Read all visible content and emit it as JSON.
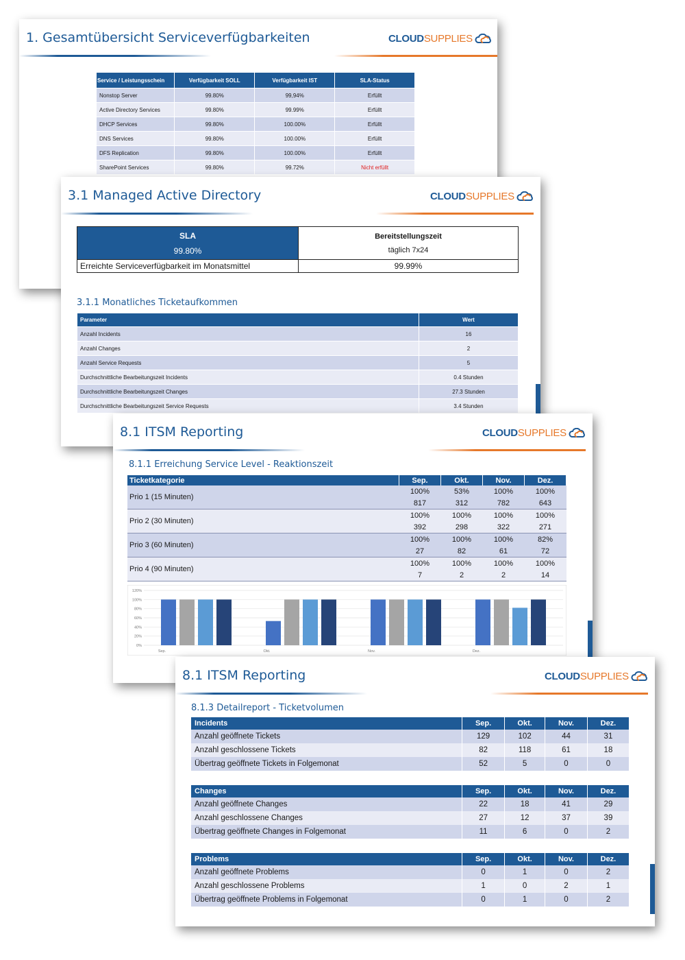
{
  "brand": {
    "cloud": "CLOUD",
    "supplies": "SUPPLIES"
  },
  "page1": {
    "title": "1. Gesamtübersicht Serviceverfügbarkeiten",
    "headers": [
      "Service / Leistungsschein",
      "Verfügbarkeit SOLL",
      "Verfügbarkeit IST",
      "SLA-Status"
    ],
    "rows": [
      [
        "Nonstop Server",
        "99.80%",
        "99,94%",
        "Erfüllt"
      ],
      [
        "Active Directory Services",
        "99.80%",
        "99.99%",
        "Erfüllt"
      ],
      [
        "DHCP Services",
        "99.80%",
        "100.00%",
        "Erfüllt"
      ],
      [
        "DNS Services",
        "99.80%",
        "100.00%",
        "Erfüllt"
      ],
      [
        "DFS Replication",
        "99.80%",
        "100.00%",
        "Erfüllt"
      ],
      [
        "SharePoint Services",
        "99.80%",
        "99.72%",
        "Nicht erfüllt"
      ]
    ],
    "fail_color": "#e02020"
  },
  "page2": {
    "title": "3.1 Managed Active Directory",
    "sla_label": "SLA",
    "sla_value": "99.80%",
    "bereit_label": "Bereitstellungszeit",
    "bereit_value": "täglich 7x24",
    "avail_label": "Erreichte Serviceverfügbarkeit im Monatsmittel",
    "avail_value": "99.99%",
    "section": "3.1.1 Monatliches Ticketaufkommen",
    "headers": [
      "Parameter",
      "Wert"
    ],
    "rows": [
      [
        "Anzahl Incidents",
        "16"
      ],
      [
        "Anzahl Changes",
        "2"
      ],
      [
        "Anzahl Service Requests",
        "5"
      ],
      [
        "Durchschnittliche Bearbeitungszeit Incidents",
        "0.4 Stunden"
      ],
      [
        "Durchschnittliche Bearbeitungszeit Changes",
        "27.3 Stunden"
      ],
      [
        "Durchschnittliche Bearbeitungszeit Service Requests",
        "3.4 Stunden"
      ]
    ]
  },
  "page3": {
    "title": "8.1 ITSM Reporting",
    "section": "8.1.1 Erreichung Service Level - Reaktionszeit",
    "headers": [
      "Ticketkategorie",
      "Sep.",
      "Okt.",
      "Nov.",
      "Dez."
    ],
    "rows": [
      {
        "label": "Prio 1 (15 Minuten)",
        "pct": [
          "100%",
          "53%",
          "100%",
          "100%"
        ],
        "cnt": [
          "817",
          "312",
          "782",
          "643"
        ]
      },
      {
        "label": "Prio 2 (30 Minuten)",
        "pct": [
          "100%",
          "100%",
          "100%",
          "100%"
        ],
        "cnt": [
          "392",
          "298",
          "322",
          "271"
        ]
      },
      {
        "label": "Prio 3 (60 Minuten)",
        "pct": [
          "100%",
          "100%",
          "100%",
          "82%"
        ],
        "cnt": [
          "27",
          "82",
          "61",
          "72"
        ]
      },
      {
        "label": "Prio 4 (90 Minuten)",
        "pct": [
          "100%",
          "100%",
          "100%",
          "100%"
        ],
        "cnt": [
          "7",
          "2",
          "2",
          "14"
        ]
      }
    ]
  },
  "chart_data": {
    "type": "bar",
    "categories": [
      "Sep.",
      "Okt.",
      "Nov.",
      "Dez."
    ],
    "series": [
      {
        "values": [
          100,
          53,
          100,
          100
        ],
        "color": "#4472c4"
      },
      {
        "values": [
          100,
          100,
          100,
          100
        ],
        "color": "#a5a5a5"
      },
      {
        "values": [
          100,
          100,
          100,
          82
        ],
        "color": "#5b9bd5"
      },
      {
        "values": [
          100,
          100,
          100,
          100
        ],
        "color": "#264478"
      }
    ],
    "yticks": [
      "0%",
      "20%",
      "40%",
      "60%",
      "80%",
      "100%",
      "120%"
    ],
    "ylim": [
      0,
      120
    ],
    "grid": true
  },
  "page4": {
    "title": "8.1 ITSM Reporting",
    "section": "8.1.3 Detailreport - Ticketvolumen",
    "months": [
      "Sep.",
      "Okt.",
      "Nov.",
      "Dez."
    ],
    "groups": [
      {
        "name": "Incidents",
        "rows": [
          [
            "Anzahl geöffnete Tickets",
            "129",
            "102",
            "44",
            "31"
          ],
          [
            "Anzahl geschlossene Tickets",
            "82",
            "118",
            "61",
            "18"
          ],
          [
            "Übertrag geöffnete Tickets in Folgemonat",
            "52",
            "5",
            "0",
            "0"
          ]
        ]
      },
      {
        "name": "Changes",
        "rows": [
          [
            "Anzahl geöffnete Changes",
            "22",
            "18",
            "41",
            "29"
          ],
          [
            "Anzahl geschlossene Changes",
            "27",
            "12",
            "37",
            "39"
          ],
          [
            "Übertrag geöffnete Changes in Folgemonat",
            "11",
            "6",
            "0",
            "2"
          ]
        ]
      },
      {
        "name": "Problems",
        "rows": [
          [
            "Anzahl geöffnete Problems",
            "0",
            "1",
            "0",
            "2"
          ],
          [
            "Anzahl geschlossene Problems",
            "1",
            "0",
            "2",
            "1"
          ],
          [
            "Übertrag geöffnete Problems in Folgemonat",
            "0",
            "1",
            "0",
            "2"
          ]
        ]
      }
    ]
  }
}
